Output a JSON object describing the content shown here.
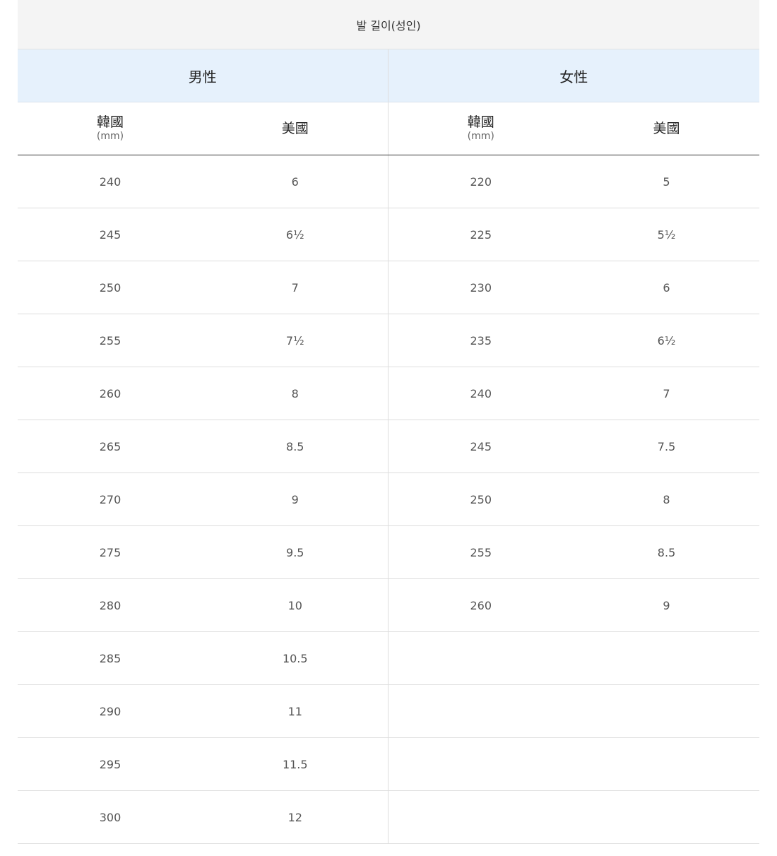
{
  "title": "발 길이(성인)",
  "groups": [
    "男性",
    "女性"
  ],
  "subheaders": {
    "korea": "韓國",
    "unit": "(mm)",
    "us": "美國"
  },
  "men": [
    [
      "240",
      "6"
    ],
    [
      "245",
      "6½"
    ],
    [
      "250",
      "7"
    ],
    [
      "255",
      "7½"
    ],
    [
      "260",
      "8"
    ],
    [
      "265",
      "8.5"
    ],
    [
      "270",
      "9"
    ],
    [
      "275",
      "9.5"
    ],
    [
      "280",
      "10"
    ],
    [
      "285",
      "10.5"
    ],
    [
      "290",
      "11"
    ],
    [
      "295",
      "11.5"
    ],
    [
      "300",
      "12"
    ]
  ],
  "women": [
    [
      "220",
      "5"
    ],
    [
      "225",
      "5½"
    ],
    [
      "230",
      "6"
    ],
    [
      "235",
      "6½"
    ],
    [
      "240",
      "7"
    ],
    [
      "245",
      "7.5"
    ],
    [
      "250",
      "8"
    ],
    [
      "255",
      "8.5"
    ],
    [
      "260",
      "9"
    ]
  ]
}
